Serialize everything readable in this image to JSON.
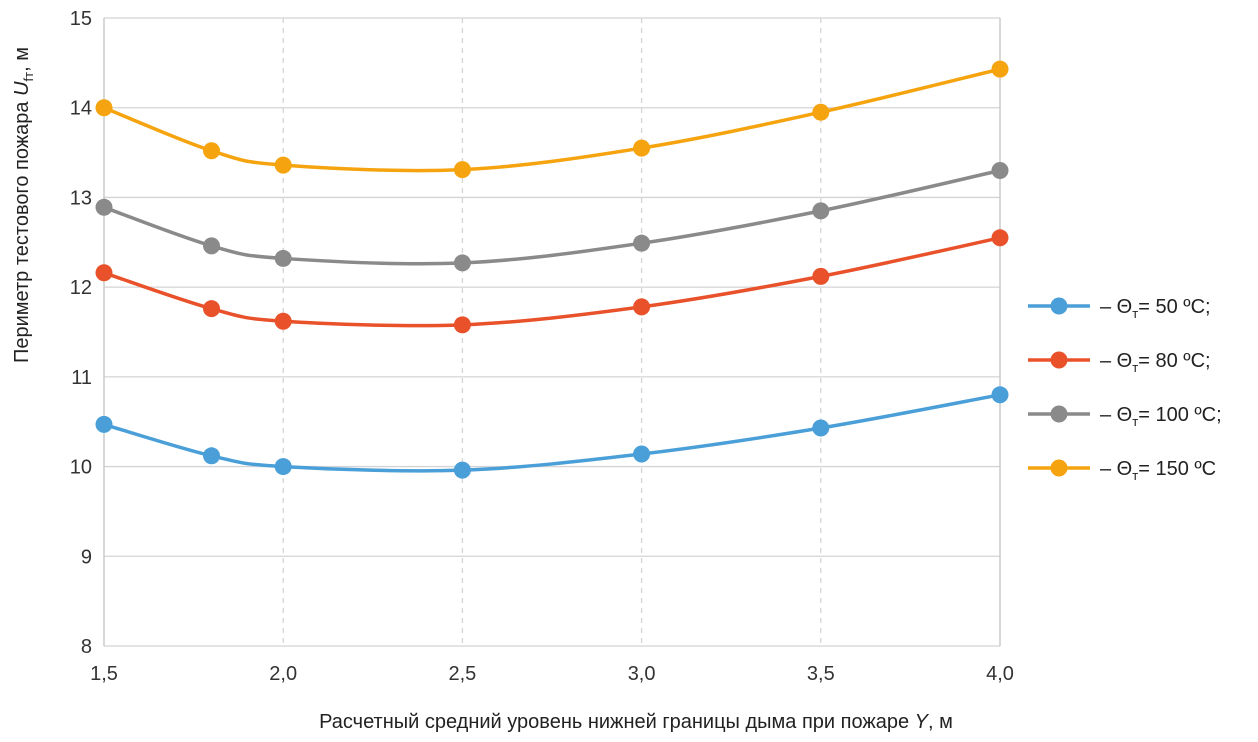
{
  "chart_data": {
    "type": "line",
    "title": "",
    "xlabel_prefix": "Расчетный средний уровень нижней границы дыма при пожаре ",
    "xlabel_var": "Y",
    "xlabel_suffix": ", м",
    "ylabel_prefix": "Периметр тестового пожара ",
    "ylabel_var": "U",
    "ylabel_sub": "fт",
    "ylabel_suffix": ", м",
    "x": [
      1.5,
      1.8,
      2.0,
      2.5,
      3.0,
      3.5,
      4.0
    ],
    "xlim": [
      1.5,
      4.0
    ],
    "ylim": [
      8,
      15
    ],
    "x_ticks": [
      1.5,
      2.0,
      2.5,
      3.0,
      3.5,
      4.0
    ],
    "x_tick_labels": [
      "1,5",
      "2,0",
      "2,5",
      "3,0",
      "3,5",
      "4,0"
    ],
    "y_ticks": [
      8,
      9,
      10,
      11,
      12,
      13,
      14,
      15
    ],
    "y_tick_labels": [
      "8",
      "9",
      "10",
      "11",
      "12",
      "13",
      "14",
      "15"
    ],
    "grid": true,
    "legend_position": "right",
    "series": [
      {
        "name_prefix": "– Θ",
        "name_sub": "т",
        "name_rest": "= 50 ºC;",
        "color": "#4a9fd8",
        "values": [
          10.47,
          10.12,
          10.0,
          9.96,
          10.14,
          10.43,
          10.8
        ]
      },
      {
        "name_prefix": "– Θ",
        "name_sub": "т",
        "name_rest": "= 80 ºC;",
        "color": "#e8512a",
        "values": [
          12.16,
          11.76,
          11.62,
          11.58,
          11.78,
          12.12,
          12.55
        ]
      },
      {
        "name_prefix": "– Θ",
        "name_sub": "т",
        "name_rest": "= 100 ºC;",
        "color": "#8a8a8a",
        "values": [
          12.89,
          12.46,
          12.32,
          12.27,
          12.49,
          12.85,
          13.3
        ]
      },
      {
        "name_prefix": "– Θ",
        "name_sub": "т",
        "name_rest": "= 150 ºC",
        "color": "#f5a40f",
        "values": [
          14.0,
          13.52,
          13.36,
          13.31,
          13.55,
          13.95,
          14.43
        ]
      }
    ]
  }
}
